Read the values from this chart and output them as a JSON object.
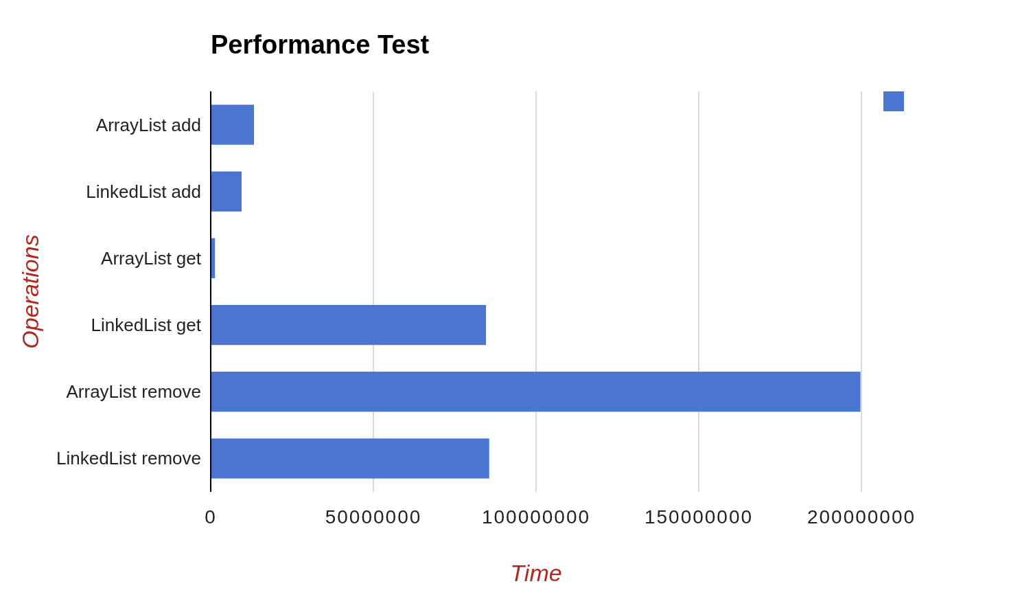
{
  "chart_data": {
    "type": "bar",
    "orientation": "horizontal",
    "title": "Performance Test",
    "xlabel": "Time",
    "ylabel": "Operations",
    "categories": [
      "ArrayList add",
      "LinkedList add",
      "ArrayList get",
      "LinkedList get",
      "ArrayList remove",
      "LinkedList remove"
    ],
    "series": [
      {
        "color": "#4a76d1",
        "values": [
          13300000,
          9500000,
          1300000,
          84600000,
          199700000,
          85600000
        ]
      }
    ],
    "xlim": [
      0,
      200000000
    ],
    "xticks": [
      0,
      50000000,
      100000000,
      150000000,
      200000000
    ],
    "grid": "x"
  }
}
